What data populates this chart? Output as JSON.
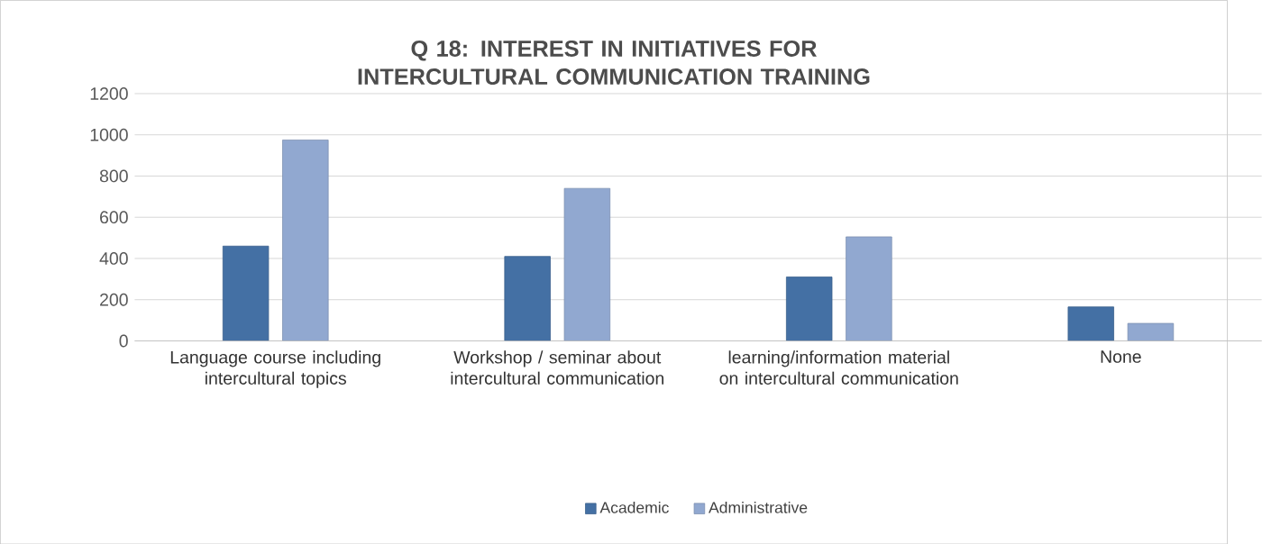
{
  "chart_data": {
    "type": "bar",
    "title": "Q 18: INTEREST IN INITIATIVES FOR INTERCULTURAL COMMUNICATION TRAINING",
    "categories": [
      "Language course including intercultural topics",
      "Workshop / seminar about intercultural communication",
      "learning/information material on intercultural communication",
      "None"
    ],
    "series": [
      {
        "name": "Academic",
        "color": "#4470a4",
        "values": [
          460,
          410,
          310,
          165
        ]
      },
      {
        "name": "Administrative",
        "color": "#91a8d0",
        "values": [
          975,
          740,
          505,
          85
        ]
      }
    ],
    "ylim": [
      0,
      1200
    ],
    "yticks": [
      0,
      200,
      400,
      600,
      800,
      1000,
      1200
    ],
    "grid": "y",
    "legend": "bottom"
  }
}
